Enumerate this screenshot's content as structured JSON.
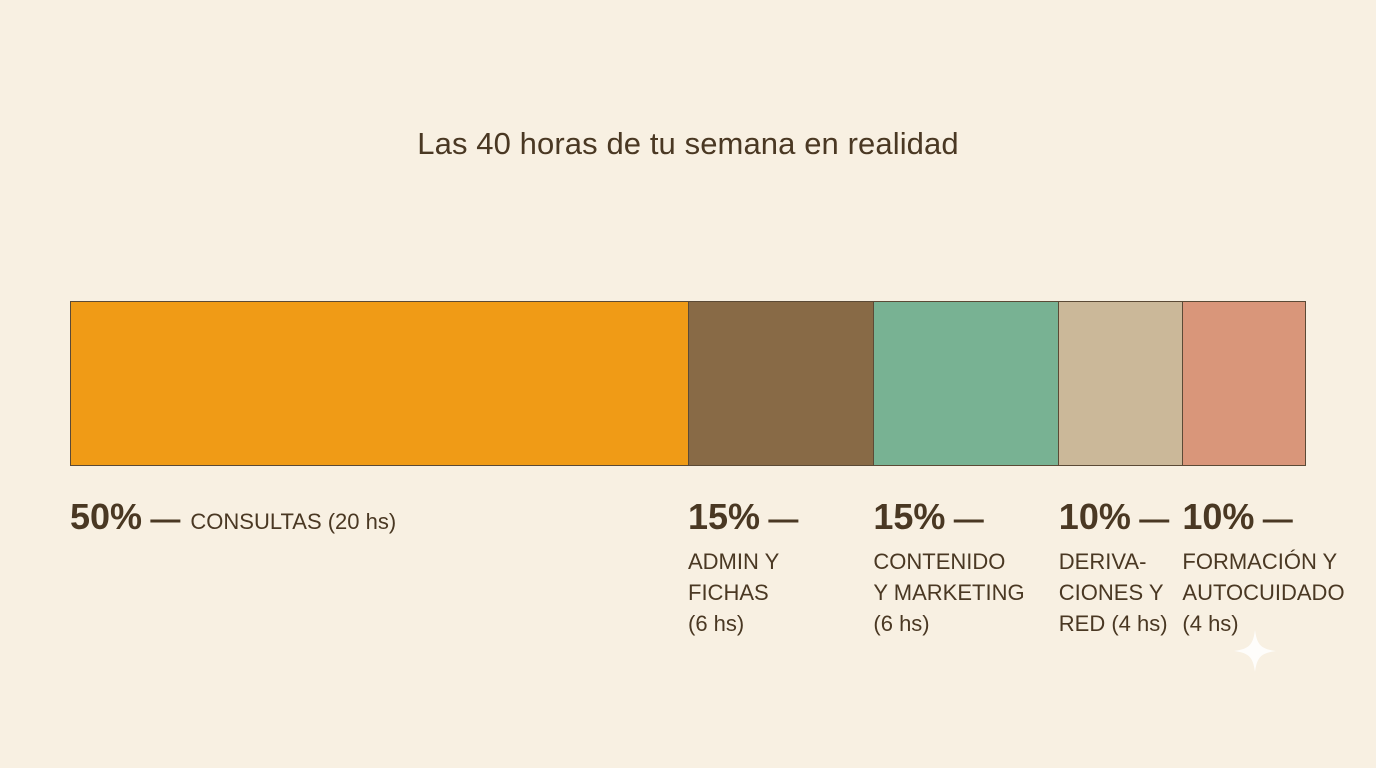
{
  "chart_data": {
    "type": "bar",
    "orientation": "horizontal-stacked",
    "title": "Las 40 horas de tu semana en realidad",
    "total_hours": 40,
    "segments": [
      {
        "name": "CONSULTAS",
        "percent": 50,
        "percent_label": "50%",
        "dash": "—",
        "label_lines": [
          "CONSULTAS (20 hs)"
        ],
        "color": "#f09b16"
      },
      {
        "name": "ADMIN Y FICHAS",
        "percent": 15,
        "percent_label": "15%",
        "dash": "—",
        "label_lines": [
          "ADMIN Y",
          "FICHAS",
          "(6 hs)"
        ],
        "color": "#886a46"
      },
      {
        "name": "CONTENIDO Y MARKETING",
        "percent": 15,
        "percent_label": "15%",
        "dash": "—",
        "label_lines": [
          "CONTENIDO",
          "Y MARKETING",
          "(6 hs)"
        ],
        "color": "#78b293"
      },
      {
        "name": "DERIVACIONES Y RED",
        "percent": 10,
        "percent_label": "10%",
        "dash": "—",
        "label_lines": [
          "DERIVA-",
          "CIONES Y",
          "RED (4 hs)"
        ],
        "color": "#cbb899"
      },
      {
        "name": "FORMACIÓN Y AUTOCUIDADO",
        "percent": 10,
        "percent_label": "10%",
        "dash": "—",
        "label_lines": [
          "FORMACIÓN Y",
          "AUTOCUIDADO",
          "(4 hs)"
        ],
        "color": "#d9967a"
      }
    ],
    "legend": "below-bar",
    "grid": false
  },
  "decoration": {
    "icon": "sparkle-icon",
    "color": "#ffffff"
  }
}
